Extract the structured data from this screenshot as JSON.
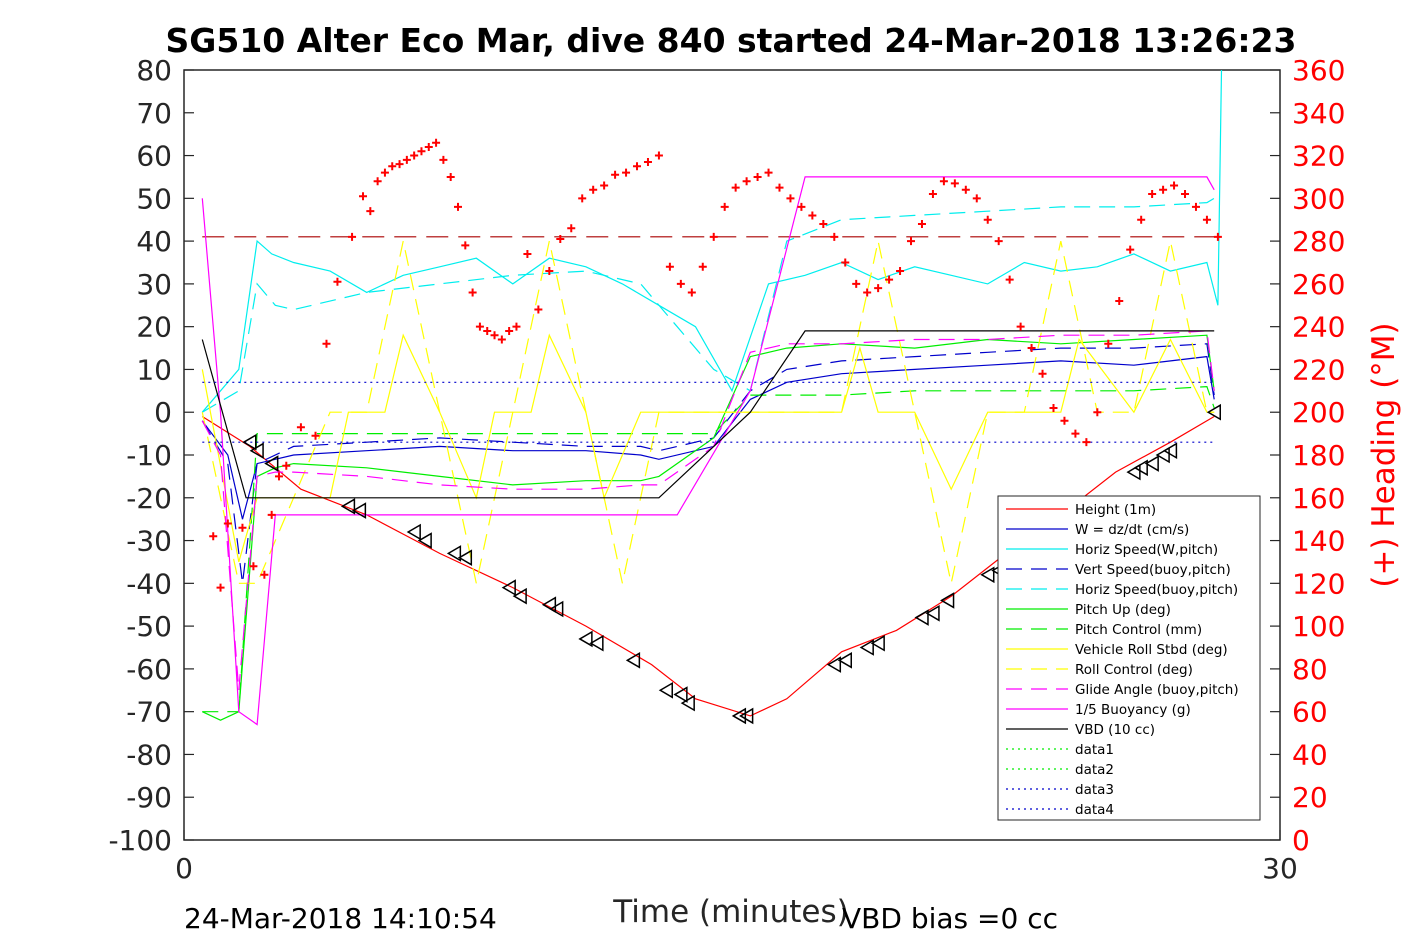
{
  "chart_data": {
    "type": "line",
    "title": "SG510 Alter Eco Mar, dive 840 started 24-Mar-2018 13:26:23",
    "xlabel": "Time (minutes)",
    "ylabel_left": "",
    "ylabel_right": "(+) Heading (°M)",
    "xlim": [
      0,
      30
    ],
    "ylim": [
      -100,
      80
    ],
    "ylim_right": [
      0,
      360
    ],
    "x_ticks": [
      "0",
      "30"
    ],
    "y_ticks": [
      "80",
      "70",
      "60",
      "50",
      "40",
      "30",
      "20",
      "10",
      "0",
      "-10",
      "-20",
      "-30",
      "-40",
      "-50",
      "-60",
      "-70",
      "-80",
      "-90",
      "-100"
    ],
    "y_ticks_right": [
      "360",
      "340",
      "320",
      "300",
      "280",
      "260",
      "240",
      "220",
      "200",
      "180",
      "160",
      "140",
      "120",
      "100",
      "80",
      "60",
      "40",
      "20",
      "0"
    ],
    "grid": false,
    "legend_position": "bottom-right",
    "footer_left": "24-Mar-2018 14:10:54",
    "footer_right": "VBD bias =0 cc",
    "colors": {
      "red": "#ff0000",
      "blue": "#0000cc",
      "cyan": "#00ffff",
      "green": "#00ee00",
      "yellow": "#ffff00",
      "magenta": "#ff00ff",
      "black": "#000000",
      "heading": "#ff0000",
      "darkred": "#aa0000"
    },
    "series": [
      {
        "name": "Height (1m)",
        "color": "#ff0000",
        "style": "solid",
        "x": [
          0.5,
          1.8,
          3.2,
          5.0,
          7.0,
          9.0,
          11.0,
          12.8,
          14.0,
          15.5,
          16.5,
          18.0,
          19.5,
          21.0,
          22.5,
          24.0,
          25.5,
          27.0,
          28.2
        ],
        "y": [
          -1,
          -8,
          -18,
          -24,
          -33,
          -41,
          -50,
          -59,
          -67,
          -71,
          -67,
          -56,
          -51,
          -43,
          -33,
          -24,
          -14,
          -7,
          -1
        ]
      },
      {
        "name": "W = dz/dt (cm/s)",
        "color": "#0000cc",
        "style": "solid",
        "x": [
          0.5,
          1.2,
          1.6,
          2.0,
          3.0,
          5.0,
          7.0,
          9.0,
          11.0,
          12.5,
          13.0,
          14.5,
          15.5,
          16.5,
          18,
          20,
          22,
          24,
          26,
          28,
          28.2
        ],
        "y": [
          -2,
          -10,
          -25,
          -12,
          -10,
          -9,
          -8,
          -9,
          -9,
          -10,
          -11,
          -8,
          3,
          7,
          9,
          10,
          11,
          12,
          11,
          13,
          3
        ]
      },
      {
        "name": "Horiz Speed(W,pitch)",
        "color": "#00eeee",
        "style": "solid",
        "x": [
          0.5,
          1.5,
          2.0,
          2.4,
          3.0,
          4.0,
          5.0,
          6.0,
          7.0,
          8.0,
          9.0,
          10.0,
          11.0,
          12.0,
          13.0,
          14.0,
          15.0,
          16.0,
          17.0,
          18.0,
          19.0,
          20.0,
          21.0,
          22.0,
          23.0,
          24.0,
          25.0,
          26.0,
          27.0,
          28.0,
          28.3,
          28.4
        ],
        "y": [
          0,
          10,
          40,
          37,
          35,
          33,
          28,
          32,
          34,
          36,
          30,
          36,
          34,
          30,
          25,
          20,
          5,
          30,
          32,
          35,
          31,
          34,
          32,
          30,
          35,
          33,
          34,
          37,
          33,
          35,
          25,
          80
        ]
      },
      {
        "name": "Vert Speed(buoy,pitch)",
        "color": "#0000cc",
        "style": "dash",
        "x": [
          0.5,
          1.2,
          1.6,
          2.0,
          3,
          5,
          7,
          9,
          11,
          12.5,
          13,
          14.5,
          15.5,
          16.5,
          18,
          20,
          22,
          24,
          26,
          28,
          28.2
        ],
        "y": [
          -2,
          -12,
          -40,
          -12,
          -8,
          -7,
          -6,
          -7,
          -8,
          -8,
          -9,
          -6,
          5,
          10,
          12,
          13,
          14,
          15,
          15,
          16,
          4
        ]
      },
      {
        "name": "Horiz Speed(buoy,pitch)",
        "color": "#00eeee",
        "style": "dash",
        "x": [
          0.5,
          1.5,
          2.0,
          2.5,
          3,
          5,
          7,
          9,
          11,
          12.5,
          13.5,
          14.5,
          15.5,
          16.5,
          18,
          20,
          22,
          24,
          26,
          28,
          28.2
        ],
        "y": [
          0,
          5,
          30,
          25,
          24,
          28,
          30,
          32,
          33,
          30,
          20,
          10,
          5,
          40,
          45,
          46,
          47,
          48,
          48,
          49,
          50
        ]
      },
      {
        "name": "Pitch Up (deg)",
        "color": "#00ee00",
        "style": "solid",
        "x": [
          0.5,
          1.0,
          1.5,
          2.0,
          2.5,
          3,
          5,
          7,
          9,
          11,
          12.5,
          13,
          14.5,
          15.5,
          16.5,
          18,
          20,
          22,
          24,
          26,
          28,
          28.2
        ],
        "y": [
          -70,
          -72,
          -70,
          -15,
          -13,
          -12,
          -13,
          -15,
          -17,
          -16,
          -16,
          -15,
          -6,
          13,
          15,
          16,
          15,
          17,
          16,
          17,
          18,
          5
        ]
      },
      {
        "name": "Pitch Control (mm)",
        "color": "#00ee00",
        "style": "dash",
        "x": [
          0.5,
          1.5,
          2.0,
          2.5,
          3,
          5,
          7,
          9,
          11,
          12.5,
          13,
          14.5,
          15.5,
          16.5,
          18,
          20,
          22,
          24,
          26,
          28,
          28.2
        ],
        "y": [
          -70,
          -70,
          -5,
          -5,
          -5,
          -5,
          -5,
          -5,
          -5,
          -5,
          -5,
          -5,
          4,
          4,
          4,
          5,
          5,
          5,
          5,
          6,
          1
        ]
      },
      {
        "name": "Vehicle Roll Stbd (deg)",
        "color": "#ffff00",
        "style": "solid",
        "x": [
          0.5,
          1.5,
          2.0,
          4.0,
          4.5,
          5.5,
          6.0,
          7.0,
          8.0,
          8.5,
          9.5,
          10,
          11,
          11.5,
          12.5,
          13,
          15,
          16,
          18,
          18.5,
          19,
          20,
          21,
          22,
          23,
          24,
          24.5,
          26,
          27,
          28,
          28.2
        ],
        "y": [
          10,
          -35,
          -20,
          -20,
          0,
          0,
          18,
          0,
          -20,
          0,
          0,
          18,
          0,
          -20,
          0,
          0,
          0,
          0,
          0,
          15,
          0,
          0,
          -18,
          0,
          0,
          0,
          17,
          0,
          17,
          0,
          0
        ]
      },
      {
        "name": "Roll Control (deg)",
        "color": "#ffff00",
        "style": "dash",
        "x": [
          0.5,
          1.5,
          2.0,
          3.0,
          4.0,
          5.0,
          6.0,
          7.0,
          8.0,
          9.0,
          10.0,
          11.0,
          12.0,
          13.0,
          14.0,
          15.0,
          16.0,
          17.0,
          18.0,
          19.0,
          20.0,
          21.0,
          22.0,
          23.0,
          24.0,
          25.0,
          26.0,
          27.0,
          28.0,
          28.2
        ],
        "y": [
          0,
          -40,
          -40,
          -20,
          0,
          0,
          40,
          0,
          -40,
          0,
          40,
          0,
          -40,
          0,
          0,
          0,
          0,
          0,
          0,
          40,
          0,
          -40,
          0,
          0,
          40,
          0,
          0,
          40,
          0,
          0
        ]
      },
      {
        "name": "Glide Angle (buoy,pitch)",
        "color": "#ff00ff",
        "style": "dash",
        "x": [
          0.5,
          1.0,
          1.5,
          2.0,
          2.5,
          3,
          5,
          7,
          9,
          11,
          12.5,
          13,
          14.5,
          15.5,
          16.5,
          18,
          20,
          22,
          24,
          26,
          28,
          28.2
        ],
        "y": [
          -2,
          -10,
          -65,
          -15,
          -14,
          -14,
          -15,
          -17,
          -18,
          -18,
          -17,
          -17,
          -8,
          14,
          16,
          16,
          17,
          17,
          18,
          18,
          19,
          5
        ]
      },
      {
        "name": "1/5 Buoyancy (g)",
        "color": "#ff00ff",
        "style": "solid",
        "x": [
          0.5,
          1.0,
          1.5,
          2.0,
          2.5,
          3.5,
          13.5,
          15.5,
          17,
          28,
          28.2
        ],
        "y": [
          50,
          0,
          -70,
          -73,
          -24,
          -24,
          -24,
          5,
          55,
          55,
          52
        ]
      },
      {
        "name": "VBD (10 cc)",
        "color": "#000000",
        "style": "solid",
        "x": [
          0.5,
          1.7,
          2.0,
          13.0,
          15.5,
          17,
          28,
          28.2
        ],
        "y": [
          17,
          -20,
          -20,
          -20,
          0,
          19,
          19,
          19
        ]
      },
      {
        "name": "data1",
        "color": "#00ee00",
        "style": "dot",
        "x": [],
        "y": []
      },
      {
        "name": "data2",
        "color": "#00ee00",
        "style": "dot",
        "x": [],
        "y": []
      },
      {
        "name": "data3",
        "color": "#0000cc",
        "style": "dot",
        "x": [
          0.5,
          28.2
        ],
        "y": [
          7,
          7
        ]
      },
      {
        "name": "data4",
        "color": "#0000cc",
        "style": "dot",
        "x": [
          0.5,
          28.2
        ],
        "y": [
          -7,
          -7
        ]
      }
    ],
    "markers": {
      "x": [
        1.8,
        2.0,
        2.4,
        4.5,
        4.8,
        6.3,
        6.6,
        7.4,
        7.7,
        8.9,
        9.2,
        10.0,
        10.2,
        11.0,
        11.3,
        12.3,
        13.2,
        13.6,
        13.8,
        15.2,
        15.4,
        17.8,
        18.1,
        18.7,
        19.0,
        20.2,
        20.5,
        20.9,
        22.0,
        22.3,
        23.0,
        26.0,
        26.2,
        26.5,
        26.8,
        27.0,
        28.2
      ],
      "y": [
        -7,
        -9,
        -12,
        -22,
        -23,
        -28,
        -30,
        -33,
        -34,
        -41,
        -43,
        -45,
        -46,
        -53,
        -54,
        -58,
        -65,
        -66,
        -68,
        -71,
        -71,
        -59,
        -58,
        -55,
        -54,
        -48,
        -47,
        -44,
        -38,
        -37,
        -28,
        -14,
        -13,
        -12,
        -10,
        -9,
        0
      ]
    },
    "heading": {
      "x": [
        0.8,
        1.0,
        1.2,
        1.6,
        1.9,
        2.2,
        2.4,
        2.6,
        2.8,
        3.2,
        3.6,
        3.9,
        4.2,
        4.6,
        4.9,
        5.1,
        5.3,
        5.5,
        5.7,
        5.9,
        6.1,
        6.3,
        6.5,
        6.7,
        6.9,
        7.1,
        7.3,
        7.5,
        7.7,
        7.9,
        8.1,
        8.3,
        8.5,
        8.7,
        8.9,
        9.1,
        9.4,
        9.7,
        10.0,
        10.3,
        10.6,
        10.9,
        11.2,
        11.5,
        11.8,
        12.1,
        12.4,
        12.7,
        13.0,
        13.3,
        13.6,
        13.9,
        14.2,
        14.5,
        14.8,
        15.1,
        15.4,
        15.7,
        16.0,
        16.3,
        16.6,
        16.9,
        17.2,
        17.5,
        17.8,
        18.1,
        18.4,
        18.7,
        19.0,
        19.3,
        19.6,
        19.9,
        20.2,
        20.5,
        20.8,
        21.1,
        21.4,
        21.7,
        22.0,
        22.3,
        22.6,
        22.9,
        23.2,
        23.5,
        23.8,
        24.1,
        24.4,
        24.7,
        25.0,
        25.3,
        25.6,
        25.9,
        26.2,
        26.5,
        26.8,
        27.1,
        27.4,
        27.7,
        28.0,
        28.3
      ],
      "y": [
        142,
        118,
        148,
        146,
        128,
        124,
        152,
        170,
        175,
        193,
        189,
        232,
        261,
        282,
        301,
        294,
        308,
        312,
        315,
        316,
        318,
        320,
        322,
        324,
        326,
        318,
        310,
        296,
        278,
        256,
        240,
        238,
        236,
        234,
        238,
        240,
        274,
        248,
        266,
        281,
        286,
        300,
        304,
        306,
        311,
        312,
        315,
        317,
        320,
        268,
        260,
        256,
        268,
        282,
        296,
        305,
        308,
        310,
        312,
        305,
        300,
        296,
        292,
        288,
        282,
        270,
        260,
        256,
        258,
        262,
        266,
        280,
        288,
        302,
        308,
        307,
        304,
        300,
        290,
        280,
        262,
        240,
        230,
        218,
        202,
        196,
        190,
        186,
        200,
        232,
        252,
        276,
        290,
        302,
        304,
        306,
        302,
        296,
        290,
        282
      ]
    },
    "heading_ref": {
      "x": [
        0.5,
        28.2
      ],
      "y": [
        282,
        282
      ],
      "color": "#aa0000",
      "style": "dash"
    }
  }
}
